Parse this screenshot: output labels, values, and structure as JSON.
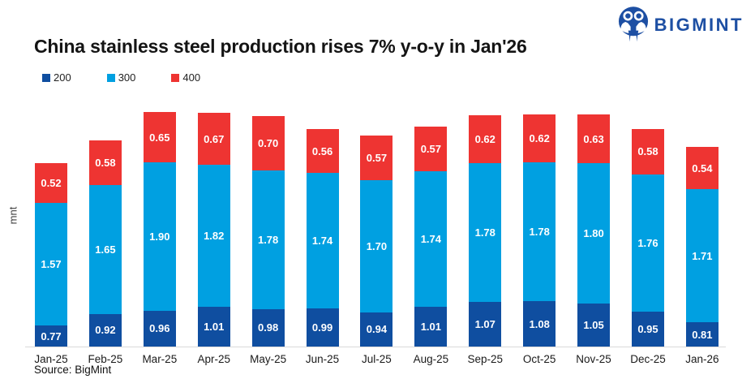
{
  "header": {
    "title": "China stainless steel production rises 7% y-o-y in Jan'26",
    "logo_text": "BIGMINT"
  },
  "ylabel": "mnt",
  "source": "Source: BigMint",
  "colors": {
    "brand_blue": "#1D4FA3",
    "series_200": "#0F4EA0",
    "series_300": "#00A0E1",
    "series_400": "#EE3432",
    "axis_line": "#D9D9D9"
  },
  "chart_data": {
    "type": "bar",
    "stacked": true,
    "title": "China stainless steel production rises 7% y-o-y in Jan'26",
    "ylabel": "mnt",
    "xlabel": "",
    "grid": false,
    "value_labels": true,
    "legend_position": "top-left",
    "y_axis": {
      "min": 0.5,
      "ticks_visible": false
    },
    "categories": [
      "Jan-25",
      "Feb-25",
      "Mar-25",
      "Apr-25",
      "May-25",
      "Jun-25",
      "Jul-25",
      "Aug-25",
      "Sep-25",
      "Oct-25",
      "Nov-25",
      "Dec-25",
      "Jan-26"
    ],
    "series": [
      {
        "name": "200",
        "color": "#0F4EA0",
        "values": [
          0.77,
          0.92,
          0.96,
          1.01,
          0.98,
          0.99,
          0.94,
          1.01,
          1.07,
          1.08,
          1.05,
          0.95,
          0.81
        ]
      },
      {
        "name": "300",
        "color": "#00A0E1",
        "values": [
          1.57,
          1.65,
          1.9,
          1.82,
          1.78,
          1.74,
          1.7,
          1.74,
          1.78,
          1.78,
          1.8,
          1.76,
          1.71
        ]
      },
      {
        "name": "400",
        "color": "#EE3432",
        "values": [
          0.52,
          0.58,
          0.65,
          0.67,
          0.7,
          0.56,
          0.57,
          0.57,
          0.62,
          0.62,
          0.63,
          0.58,
          0.54
        ]
      }
    ]
  }
}
